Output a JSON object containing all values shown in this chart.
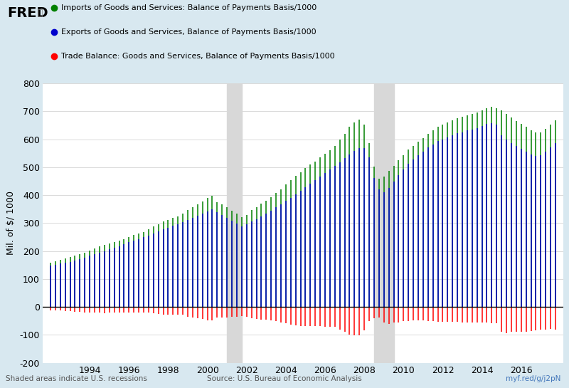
{
  "background_color": "#d8e8f0",
  "plot_bg_color": "#ffffff",
  "recession_shades": [
    {
      "start": 2001.0,
      "end": 2001.75
    },
    {
      "start": 2008.5,
      "end": 2009.5
    }
  ],
  "legend": [
    {
      "label": "Imports of Goods and Services: Balance of Payments Basis/1000",
      "color": "#008000"
    },
    {
      "label": "Exports of Goods and Services, Balance of Payments Basis/1000",
      "color": "#0000cc"
    },
    {
      "label": "Trade Balance: Goods and Services, Balance of Payments Basis/1000",
      "color": "#ff0000"
    }
  ],
  "source_text": "Source: U.S. Bureau of Economic Analysis",
  "bottom_left_text": "Shaded areas indicate U.S. recessions",
  "bottom_right_text": "myf.red/g/j2pN",
  "ylabel": "Mil. of $/ 1000",
  "ylim": [
    -200,
    800
  ],
  "yticks": [
    -200,
    -100,
    0,
    100,
    200,
    300,
    400,
    500,
    600,
    700,
    800
  ],
  "xtick_years": [
    1994,
    1996,
    1998,
    2000,
    2002,
    2004,
    2006,
    2008,
    2010,
    2012,
    2014,
    2016
  ],
  "imports": [
    159,
    163,
    168,
    173,
    178,
    183,
    189,
    195,
    202,
    209,
    216,
    222,
    226,
    232,
    238,
    243,
    250,
    257,
    263,
    269,
    277,
    287,
    296,
    306,
    312,
    319,
    325,
    333,
    348,
    358,
    368,
    377,
    390,
    398,
    376,
    368,
    356,
    344,
    333,
    321,
    330,
    346,
    357,
    369,
    379,
    393,
    407,
    422,
    438,
    455,
    468,
    483,
    496,
    509,
    521,
    535,
    549,
    561,
    575,
    600,
    620,
    644,
    660,
    670,
    652,
    586,
    503,
    460,
    466,
    486,
    506,
    526,
    543,
    563,
    576,
    591,
    603,
    620,
    633,
    646,
    653,
    661,
    668,
    675,
    680,
    686,
    692,
    697,
    703,
    712,
    716,
    711,
    703,
    692,
    677,
    665,
    654,
    644,
    633,
    625,
    625,
    638,
    652,
    667
  ],
  "exports": [
    147,
    150,
    155,
    159,
    162,
    166,
    171,
    176,
    183,
    189,
    195,
    200,
    206,
    212,
    218,
    224,
    231,
    237,
    243,
    249,
    256,
    264,
    271,
    279,
    284,
    290,
    296,
    304,
    312,
    319,
    327,
    335,
    343,
    350,
    338,
    330,
    319,
    308,
    298,
    288,
    295,
    305,
    314,
    323,
    333,
    344,
    356,
    367,
    379,
    391,
    403,
    415,
    428,
    440,
    453,
    466,
    479,
    491,
    505,
    518,
    532,
    546,
    558,
    568,
    568,
    535,
    462,
    421,
    411,
    426,
    450,
    471,
    491,
    512,
    528,
    544,
    555,
    570,
    582,
    593,
    600,
    608,
    615,
    621,
    625,
    631,
    636,
    641,
    647,
    655,
    658,
    652,
    614,
    598,
    587,
    576,
    566,
    556,
    546,
    540,
    544,
    557,
    572,
    586
  ],
  "trade_balance": [
    -12,
    -13,
    -13,
    -14,
    -16,
    -17,
    -18,
    -19,
    -19,
    -20,
    -21,
    -22,
    -20,
    -20,
    -20,
    -19,
    -19,
    -20,
    -20,
    -20,
    -21,
    -23,
    -25,
    -27,
    -28,
    -29,
    -29,
    -29,
    -36,
    -39,
    -41,
    -42,
    -47,
    -48,
    -38,
    -38,
    -37,
    -36,
    -35,
    -33,
    -35,
    -41,
    -43,
    -46,
    -46,
    -49,
    -51,
    -55,
    -59,
    -64,
    -65,
    -68,
    -68,
    -69,
    -68,
    -69,
    -70,
    -70,
    -70,
    -82,
    -88,
    -98,
    -102,
    -102,
    -84,
    -51,
    -41,
    -39,
    -55,
    -60,
    -56,
    -55,
    -52,
    -51,
    -48,
    -47,
    -48,
    -50,
    -51,
    -53,
    -53,
    -53,
    -53,
    -54,
    -55,
    -55,
    -56,
    -56,
    -56,
    -57,
    -58,
    -59,
    -89,
    -94,
    -90,
    -89,
    -88,
    -88,
    -87,
    -85,
    -81,
    -81,
    -80,
    -81
  ]
}
